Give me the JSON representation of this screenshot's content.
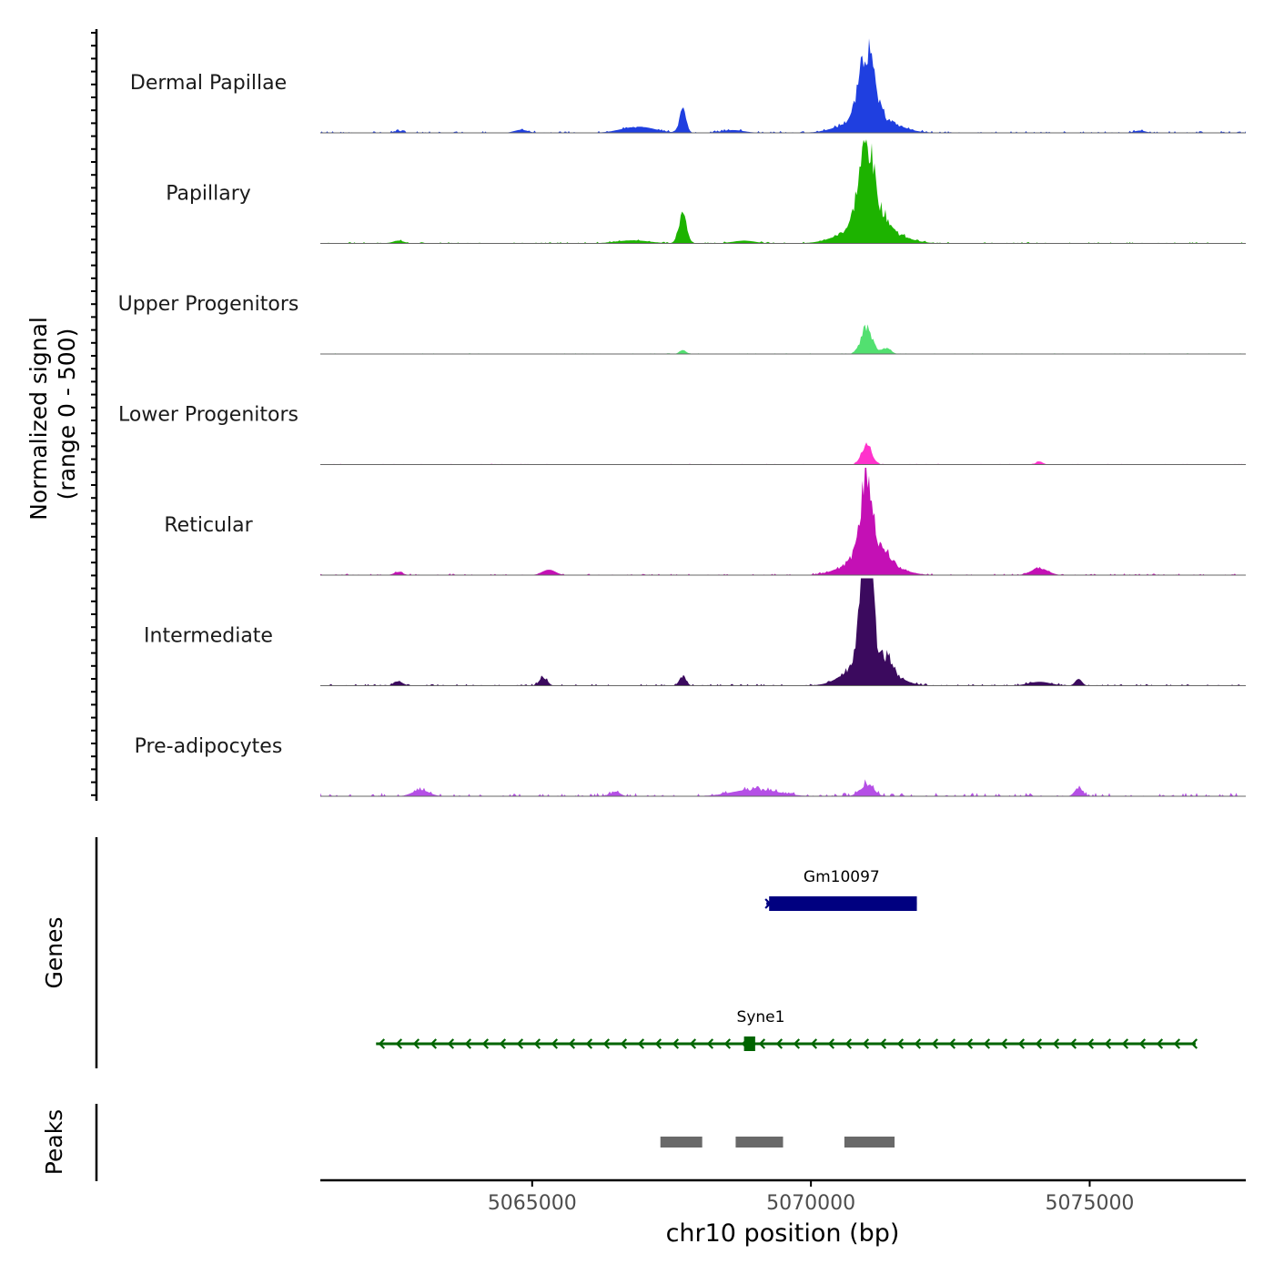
{
  "chart_data": {
    "type": "area",
    "title": "",
    "xlabel": "chr10 position (bp)",
    "ylabel_line1": "Normalized signal",
    "ylabel_line2": "(range 0 - 500)",
    "xlim": [
      5061200,
      5077800
    ],
    "ylim": [
      0,
      500
    ],
    "x_ticks": [
      5065000,
      5070000,
      5075000
    ],
    "x_tick_labels": [
      "5065000",
      "5070000",
      "5075000"
    ],
    "baseline_color": "#666666",
    "tracks": [
      {
        "name": "Dermal Papillae",
        "color": "#1f3fe0",
        "peaks": [
          [
            5067700,
            150,
            60
          ],
          [
            5071000,
            420,
            130
          ],
          [
            5071050,
            120,
            400
          ],
          [
            5066900,
            40,
            300
          ],
          [
            5062600,
            12,
            80
          ],
          [
            5064800,
            20,
            120
          ],
          [
            5068600,
            18,
            200
          ],
          [
            5075900,
            15,
            100
          ]
        ],
        "noise": 12,
        "seed": 3
      },
      {
        "name": "Papillary",
        "color": "#1db300",
        "peaks": [
          [
            5067700,
            190,
            70
          ],
          [
            5071000,
            500,
            140
          ],
          [
            5071050,
            140,
            420
          ],
          [
            5071350,
            45,
            80
          ],
          [
            5066800,
            20,
            300
          ],
          [
            5062600,
            18,
            100
          ],
          [
            5068800,
            18,
            200
          ]
        ],
        "noise": 9,
        "seed": 7
      },
      {
        "name": "Upper Progenitors",
        "color": "#52e070",
        "peaks": [
          [
            5071000,
            170,
            100
          ],
          [
            5071350,
            40,
            80
          ],
          [
            5067700,
            25,
            60
          ]
        ],
        "noise": 5,
        "seed": 11
      },
      {
        "name": "Lower Progenitors",
        "color": "#ff33cc",
        "peaks": [
          [
            5071000,
            130,
            90
          ],
          [
            5074100,
            20,
            60
          ]
        ],
        "noise": 5,
        "seed": 19
      },
      {
        "name": "Reticular",
        "color": "#c410b5",
        "peaks": [
          [
            5071000,
            520,
            110
          ],
          [
            5071050,
            140,
            380
          ],
          [
            5074100,
            45,
            150
          ],
          [
            5065300,
            35,
            120
          ],
          [
            5071350,
            50,
            90
          ],
          [
            5062600,
            20,
            80
          ]
        ],
        "noise": 10,
        "seed": 23
      },
      {
        "name": "Intermediate",
        "color": "#3b0a5e",
        "peaks": [
          [
            5071000,
            880,
            95
          ],
          [
            5071050,
            200,
            350
          ],
          [
            5065200,
            55,
            70
          ],
          [
            5067700,
            60,
            60
          ],
          [
            5071400,
            65,
            70
          ],
          [
            5074800,
            45,
            60
          ],
          [
            5062600,
            28,
            80
          ],
          [
            5074100,
            25,
            200
          ]
        ],
        "noise": 12,
        "seed": 31
      },
      {
        "name": "Pre-adipocytes",
        "color": "#b54fe6",
        "peaks": [
          [
            5071000,
            80,
            120
          ],
          [
            5074800,
            55,
            70
          ],
          [
            5066500,
            30,
            80
          ],
          [
            5069000,
            45,
            400
          ],
          [
            5063000,
            40,
            150
          ]
        ],
        "noise": 22,
        "seed": 41
      }
    ],
    "genes_axis_label": "Genes",
    "genes": [
      {
        "name": "Gm10097",
        "start": 5069200,
        "end": 5071900,
        "strand": "+",
        "color": "#000080",
        "exon_start": 5069250,
        "exon_end": 5071900
      },
      {
        "name": "Syne1",
        "start": 5062200,
        "end": 5076900,
        "strand": "-",
        "color": "#006400",
        "exon_start": 5068800,
        "exon_end": 5069000
      }
    ],
    "peaks_axis_label": "Peaks",
    "peak_regions": [
      {
        "start": 5067300,
        "end": 5068050
      },
      {
        "start": 5068650,
        "end": 5069500
      },
      {
        "start": 5070600,
        "end": 5071500
      }
    ],
    "peak_color": "#696969"
  }
}
